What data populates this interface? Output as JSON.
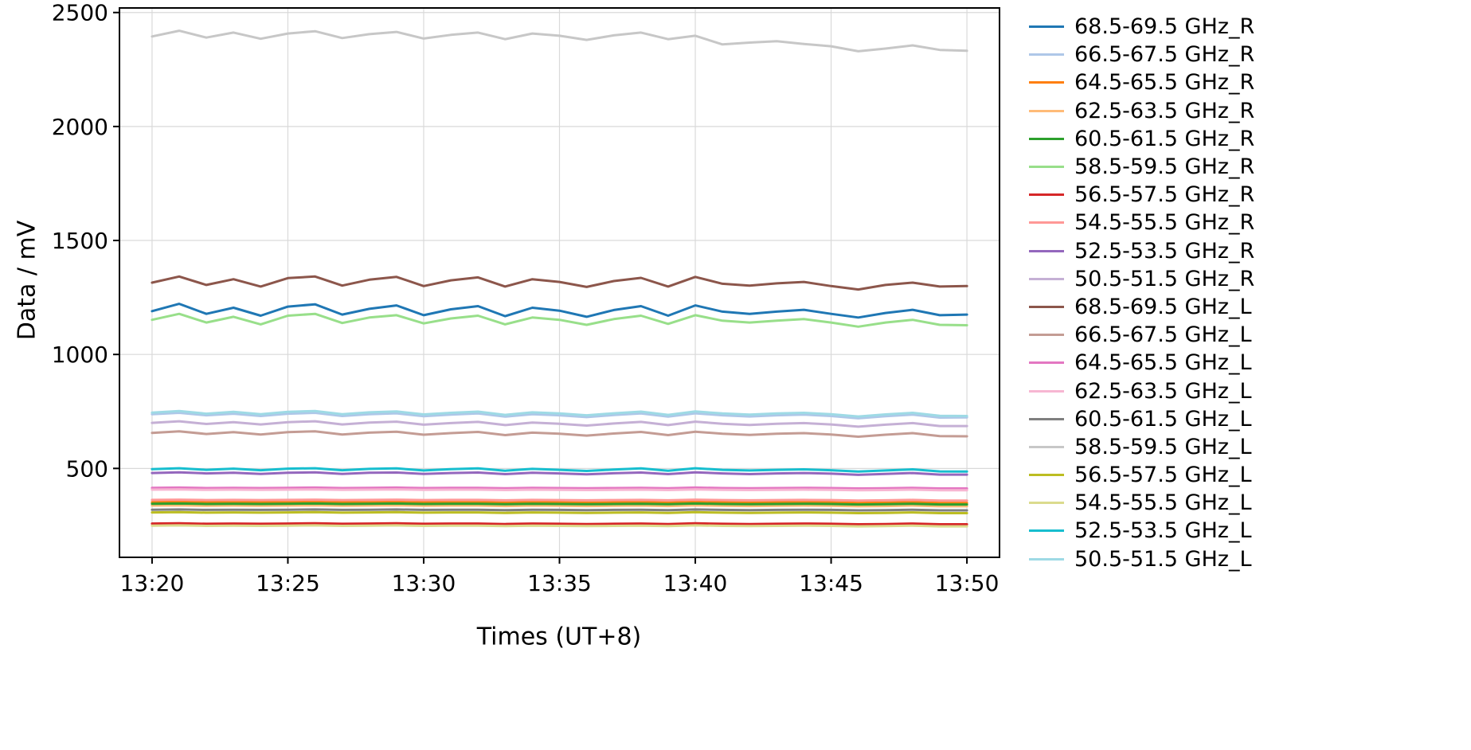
{
  "chart_data": {
    "type": "line",
    "title": "",
    "xlabel": "Times (UT+8)",
    "ylabel": "Data / mV",
    "grid": true,
    "legend_position": "right-outside",
    "x_tick_labels": [
      "13:20",
      "13:25",
      "13:30",
      "13:35",
      "13:40",
      "13:45",
      "13:50"
    ],
    "x_tick_minutes": [
      0,
      5,
      10,
      15,
      20,
      25,
      30
    ],
    "y_ticks": [
      500,
      1000,
      1500,
      2000,
      2500
    ],
    "xlim_minutes": [
      -1.2,
      31.2
    ],
    "ylim": [
      110,
      2520
    ],
    "x_minutes": [
      0,
      1,
      2,
      3,
      4,
      5,
      6,
      7,
      8,
      9,
      10,
      11,
      12,
      13,
      14,
      15,
      16,
      17,
      18,
      19,
      20,
      21,
      22,
      23,
      24,
      25,
      26,
      27,
      28,
      29,
      30
    ],
    "series": [
      {
        "name": "68.5-69.5 GHz_R",
        "color": "#1f77b4",
        "values": [
          1190,
          1222,
          1178,
          1205,
          1170,
          1210,
          1220,
          1175,
          1200,
          1215,
          1172,
          1198,
          1212,
          1168,
          1205,
          1192,
          1165,
          1195,
          1212,
          1170,
          1215,
          1188,
          1178,
          1188,
          1196,
          1178,
          1162,
          1182,
          1196,
          1172,
          1175
        ]
      },
      {
        "name": "66.5-67.5 GHz_R",
        "color": "#aec7e8",
        "values": [
          738,
          744,
          733,
          740,
          730,
          740,
          744,
          730,
          738,
          742,
          729,
          736,
          741,
          727,
          738,
          733,
          725,
          734,
          741,
          727,
          742,
          733,
          728,
          733,
          736,
          730,
          720,
          729,
          736,
          723,
          724
        ]
      },
      {
        "name": "64.5-65.5 GHz_R",
        "color": "#ff7f0e",
        "values": [
          352,
          353,
          351,
          352,
          351,
          352,
          353,
          351,
          352,
          353,
          351,
          352,
          352,
          350,
          352,
          351,
          350,
          351,
          352,
          350,
          353,
          351,
          350,
          351,
          352,
          351,
          349,
          350,
          352,
          349,
          349
        ]
      },
      {
        "name": "62.5-63.5 GHz_R",
        "color": "#ffbb78",
        "values": [
          337,
          338,
          336,
          337,
          336,
          337,
          338,
          336,
          337,
          338,
          336,
          337,
          337,
          335,
          337,
          336,
          335,
          336,
          337,
          335,
          338,
          336,
          335,
          336,
          337,
          336,
          334,
          335,
          337,
          334,
          334
        ]
      },
      {
        "name": "60.5-61.5 GHz_R",
        "color": "#2ca02c",
        "values": [
          345,
          346,
          344,
          345,
          344,
          345,
          346,
          344,
          345,
          346,
          344,
          345,
          345,
          343,
          345,
          344,
          343,
          344,
          345,
          343,
          346,
          344,
          343,
          344,
          345,
          344,
          342,
          343,
          345,
          342,
          342
        ]
      },
      {
        "name": "58.5-59.5 GHz_R",
        "color": "#98df8a",
        "values": [
          1152,
          1178,
          1140,
          1165,
          1132,
          1170,
          1178,
          1138,
          1162,
          1172,
          1136,
          1158,
          1170,
          1132,
          1162,
          1152,
          1130,
          1155,
          1170,
          1134,
          1172,
          1148,
          1140,
          1148,
          1155,
          1140,
          1122,
          1140,
          1152,
          1130,
          1128
        ]
      },
      {
        "name": "56.5-57.5 GHz_R",
        "color": "#d62728",
        "values": [
          258,
          259,
          257,
          258,
          257,
          258,
          259,
          257,
          258,
          259,
          257,
          258,
          258,
          256,
          258,
          257,
          256,
          257,
          258,
          256,
          259,
          257,
          256,
          257,
          258,
          257,
          255,
          256,
          258,
          255,
          255
        ]
      },
      {
        "name": "54.5-55.5 GHz_R",
        "color": "#ff9896",
        "values": [
          362,
          363,
          361,
          362,
          361,
          362,
          363,
          361,
          362,
          363,
          361,
          362,
          362,
          360,
          362,
          361,
          360,
          361,
          362,
          360,
          363,
          361,
          360,
          361,
          362,
          361,
          359,
          360,
          362,
          359,
          359
        ]
      },
      {
        "name": "52.5-53.5 GHz_R",
        "color": "#9467bd",
        "values": [
          480,
          483,
          478,
          481,
          476,
          481,
          483,
          476,
          481,
          482,
          476,
          480,
          482,
          475,
          481,
          478,
          474,
          479,
          482,
          475,
          483,
          478,
          475,
          478,
          480,
          477,
          472,
          476,
          480,
          473,
          473
        ]
      },
      {
        "name": "50.5-51.5 GHz_R",
        "color": "#c5b0d5",
        "values": [
          700,
          707,
          695,
          703,
          693,
          703,
          707,
          693,
          701,
          705,
          692,
          699,
          704,
          690,
          701,
          696,
          688,
          697,
          704,
          690,
          705,
          696,
          691,
          696,
          699,
          693,
          683,
          692,
          699,
          686,
          686
        ]
      },
      {
        "name": "68.5-69.5 GHz_L",
        "color": "#8c564b",
        "values": [
          1315,
          1342,
          1305,
          1330,
          1298,
          1335,
          1342,
          1302,
          1328,
          1340,
          1300,
          1325,
          1338,
          1298,
          1330,
          1318,
          1296,
          1322,
          1336,
          1298,
          1340,
          1310,
          1302,
          1312,
          1318,
          1300,
          1285,
          1305,
          1315,
          1298,
          1300
        ]
      },
      {
        "name": "66.5-67.5 GHz_L",
        "color": "#c49c94",
        "values": [
          656,
          663,
          651,
          659,
          649,
          659,
          663,
          649,
          657,
          661,
          648,
          655,
          660,
          646,
          657,
          652,
          644,
          653,
          660,
          646,
          661,
          652,
          647,
          652,
          655,
          649,
          639,
          648,
          655,
          642,
          641
        ]
      },
      {
        "name": "64.5-65.5 GHz_L",
        "color": "#e377c2",
        "values": [
          415,
          416,
          414,
          415,
          414,
          415,
          416,
          414,
          415,
          416,
          414,
          415,
          415,
          413,
          415,
          414,
          413,
          414,
          415,
          413,
          416,
          414,
          413,
          414,
          415,
          414,
          412,
          413,
          415,
          412,
          412
        ]
      },
      {
        "name": "62.5-63.5 GHz_L",
        "color": "#f7b6d2",
        "values": [
          407,
          408,
          406,
          407,
          406,
          407,
          408,
          406,
          407,
          408,
          406,
          407,
          407,
          405,
          407,
          406,
          405,
          406,
          407,
          405,
          408,
          406,
          405,
          406,
          407,
          406,
          404,
          405,
          407,
          404,
          404
        ]
      },
      {
        "name": "60.5-61.5 GHz_L",
        "color": "#7f7f7f",
        "values": [
          319,
          320,
          318,
          319,
          318,
          319,
          320,
          318,
          319,
          320,
          318,
          319,
          319,
          317,
          319,
          318,
          317,
          318,
          319,
          317,
          320,
          318,
          317,
          318,
          319,
          318,
          316,
          317,
          319,
          316,
          316
        ]
      },
      {
        "name": "58.5-59.5 GHz_L",
        "color": "#c7c7c7",
        "values": [
          2395,
          2420,
          2390,
          2412,
          2385,
          2408,
          2418,
          2388,
          2405,
          2415,
          2386,
          2402,
          2412,
          2383,
          2408,
          2398,
          2380,
          2400,
          2412,
          2383,
          2398,
          2360,
          2368,
          2374,
          2362,
          2352,
          2330,
          2342,
          2356,
          2336,
          2332
        ]
      },
      {
        "name": "56.5-57.5 GHz_L",
        "color": "#bcbd22",
        "values": [
          307,
          308,
          306,
          307,
          306,
          307,
          308,
          306,
          307,
          308,
          306,
          307,
          307,
          305,
          307,
          306,
          305,
          306,
          307,
          305,
          308,
          306,
          305,
          306,
          307,
          306,
          304,
          305,
          307,
          304,
          304
        ]
      },
      {
        "name": "54.5-55.5 GHz_L",
        "color": "#dbdb8d",
        "values": [
          249,
          250,
          248,
          249,
          248,
          249,
          250,
          248,
          249,
          250,
          248,
          249,
          249,
          247,
          249,
          248,
          247,
          248,
          249,
          247,
          250,
          248,
          247,
          248,
          249,
          248,
          246,
          247,
          249,
          246,
          246
        ]
      },
      {
        "name": "52.5-53.5 GHz_L",
        "color": "#17becf",
        "values": [
          497,
          501,
          494,
          499,
          492,
          499,
          501,
          492,
          498,
          500,
          491,
          497,
          500,
          490,
          498,
          494,
          489,
          495,
          500,
          490,
          501,
          494,
          491,
          494,
          496,
          492,
          486,
          491,
          496,
          487,
          486
        ]
      },
      {
        "name": "50.5-51.5 GHz_L",
        "color": "#9edae5",
        "values": [
          745,
          752,
          740,
          748,
          738,
          748,
          752,
          738,
          746,
          750,
          737,
          744,
          749,
          735,
          746,
          741,
          733,
          742,
          749,
          735,
          750,
          741,
          736,
          741,
          744,
          738,
          728,
          737,
          744,
          731,
          730
        ]
      }
    ]
  }
}
